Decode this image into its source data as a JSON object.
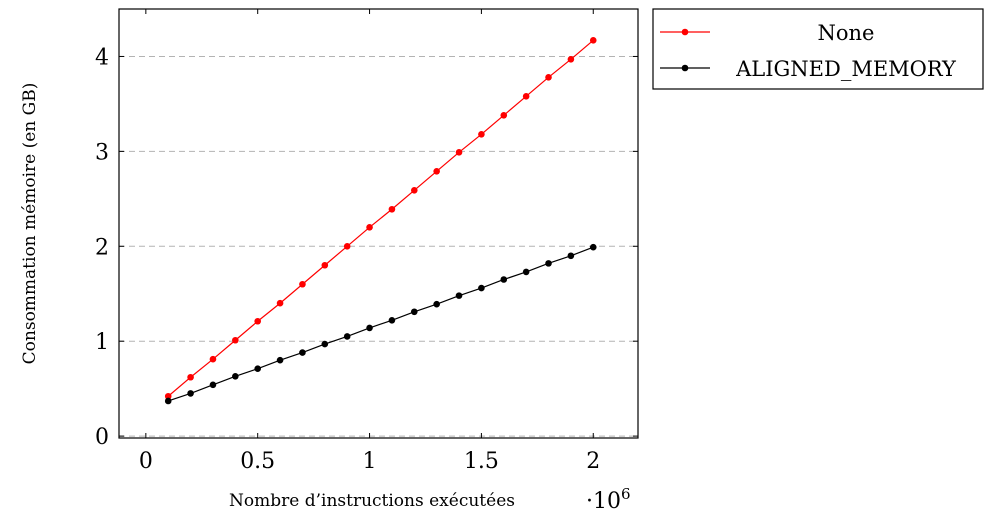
{
  "chart_data": {
    "type": "line",
    "title": "",
    "xlabel": "Nombre d’instructions exécutées",
    "x_multiplier_label": "·10",
    "x_multiplier_exponent": "6",
    "ylabel": "Consommation mémoire (en GB)",
    "xlim": [
      -0.12,
      2.2
    ],
    "ylim": [
      -0.02,
      4.5
    ],
    "x_ticks": [
      0,
      0.5,
      1,
      1.5,
      2
    ],
    "x_tick_labels": [
      "0",
      "0.5",
      "1",
      "1.5",
      "2"
    ],
    "y_ticks": [
      0,
      1,
      2,
      3,
      4
    ],
    "y_tick_labels": [
      "0",
      "1",
      "2",
      "3",
      "4"
    ],
    "grid": "horizontal dashed",
    "legend_position": "outside-top-right",
    "x": [
      0.1,
      0.2,
      0.3,
      0.4,
      0.5,
      0.6,
      0.7,
      0.8,
      0.9,
      1.0,
      1.1,
      1.2,
      1.3,
      1.4,
      1.5,
      1.6,
      1.7,
      1.8,
      1.9,
      2.0
    ],
    "series": [
      {
        "name": "None",
        "color": "#ff0000",
        "values": [
          0.42,
          0.62,
          0.81,
          1.01,
          1.21,
          1.4,
          1.6,
          1.8,
          2.0,
          2.2,
          2.39,
          2.59,
          2.79,
          2.99,
          3.18,
          3.38,
          3.58,
          3.78,
          3.97,
          4.17
        ]
      },
      {
        "name": "ALIGNED_MEMORY",
        "color": "#000000",
        "values": [
          0.37,
          0.45,
          0.54,
          0.63,
          0.71,
          0.8,
          0.88,
          0.97,
          1.05,
          1.14,
          1.22,
          1.31,
          1.39,
          1.48,
          1.56,
          1.65,
          1.73,
          1.82,
          1.9,
          1.99
        ]
      }
    ]
  }
}
